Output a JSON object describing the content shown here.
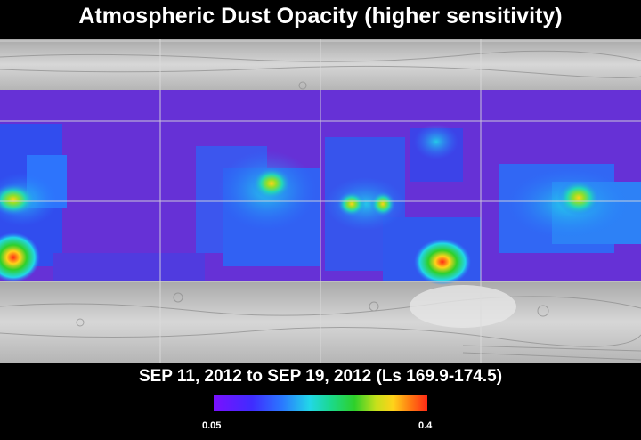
{
  "title": "Atmospheric Dust Opacity (higher sensitivity)",
  "date_range": "SEP 11, 2012 to SEP 19, 2012 (Ls 169.9-174.5)",
  "colorbar": {
    "min_label": "0.05",
    "max_label": "0.4",
    "colors": [
      "#7a10ff",
      "#3f2cff",
      "#2a78ff",
      "#22d7e8",
      "#1bd98a",
      "#2ed02a",
      "#c6e01b",
      "#ffd21a",
      "#ff7a12",
      "#ff2a16"
    ]
  },
  "map": {
    "terrain_color": "#c8c8c8",
    "dust_band_base": "#6631d6",
    "hotspots": [
      {
        "name": "west-edge-upper",
        "value": 0.26
      },
      {
        "name": "west-edge-lower",
        "value": 0.33
      },
      {
        "name": "central-west",
        "value": 0.27
      },
      {
        "name": "central-east-a",
        "value": 0.28
      },
      {
        "name": "central-east-b",
        "value": 0.27
      },
      {
        "name": "south-central",
        "value": 0.36
      },
      {
        "name": "east",
        "value": 0.3
      }
    ]
  }
}
